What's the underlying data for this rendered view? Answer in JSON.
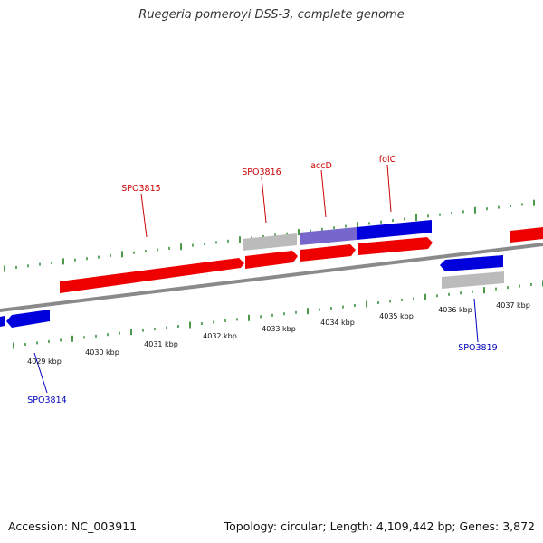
{
  "title": "Ruegeria pomeroyi DSS-3, complete genome",
  "accession": "Accession: NC_003911",
  "summary": "Topology: circular; Length: 4,109,442 bp; Genes: 3,872",
  "colors": {
    "forward": "#ee0000",
    "reverse": "#0000dd",
    "reverse_light": "#7766cc",
    "gray_feature": "#bbbbbb",
    "backbone": "#8a8a8a",
    "tick": "#117711",
    "forward_label": "#cc0000",
    "reverse_label": "#0000bb"
  },
  "kbp_labels": [
    "4029 kbp",
    "4030 kbp",
    "4031 kbp",
    "4032 kbp",
    "4033 kbp",
    "4034 kbp",
    "4035 kbp",
    "4036 kbp",
    "4037 kbp"
  ],
  "forward_gene_labels": [
    "SPO3815",
    "SPO3816",
    "accD",
    "folC"
  ],
  "reverse_gene_labels": [
    "SPO3814",
    "SPO3819"
  ]
}
